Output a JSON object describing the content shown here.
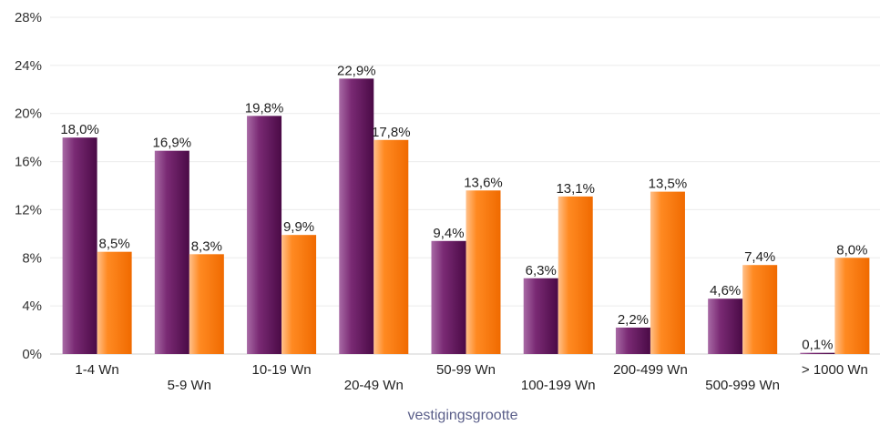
{
  "chart_data": {
    "type": "bar",
    "xlabel": "vestigingsgrootte",
    "ylabel": "",
    "ylim": [
      0,
      28
    ],
    "yticks": [
      "0%",
      "4%",
      "8%",
      "12%",
      "16%",
      "20%",
      "24%",
      "28%"
    ],
    "ytick_values": [
      0,
      4,
      8,
      12,
      16,
      20,
      24,
      28
    ],
    "grid": true,
    "legend": "none",
    "categories": [
      "1-4 Wn",
      "5-9 Wn",
      "10-19 Wn",
      "20-49 Wn",
      "50-99 Wn",
      "100-199 Wn",
      "200-499 Wn",
      "500-999 Wn",
      "> 1000 Wn"
    ],
    "series": [
      {
        "color": "#6a1464",
        "values": [
          18.0,
          16.9,
          19.8,
          22.9,
          9.4,
          6.3,
          2.2,
          4.6,
          0.1
        ],
        "labels": [
          "18,0%",
          "16,9%",
          "19,8%",
          "22,9%",
          "9,4%",
          "6,3%",
          "2,2%",
          "4,6%",
          "0,1%"
        ]
      },
      {
        "color": "#ff7a10",
        "values": [
          8.5,
          8.3,
          9.9,
          17.8,
          13.6,
          13.1,
          13.5,
          7.4,
          8.0
        ],
        "labels": [
          "8,5%",
          "8,3%",
          "9,9%",
          "17,8%",
          "13,6%",
          "13,1%",
          "13,5%",
          "7,4%",
          "8,0%"
        ]
      }
    ]
  }
}
